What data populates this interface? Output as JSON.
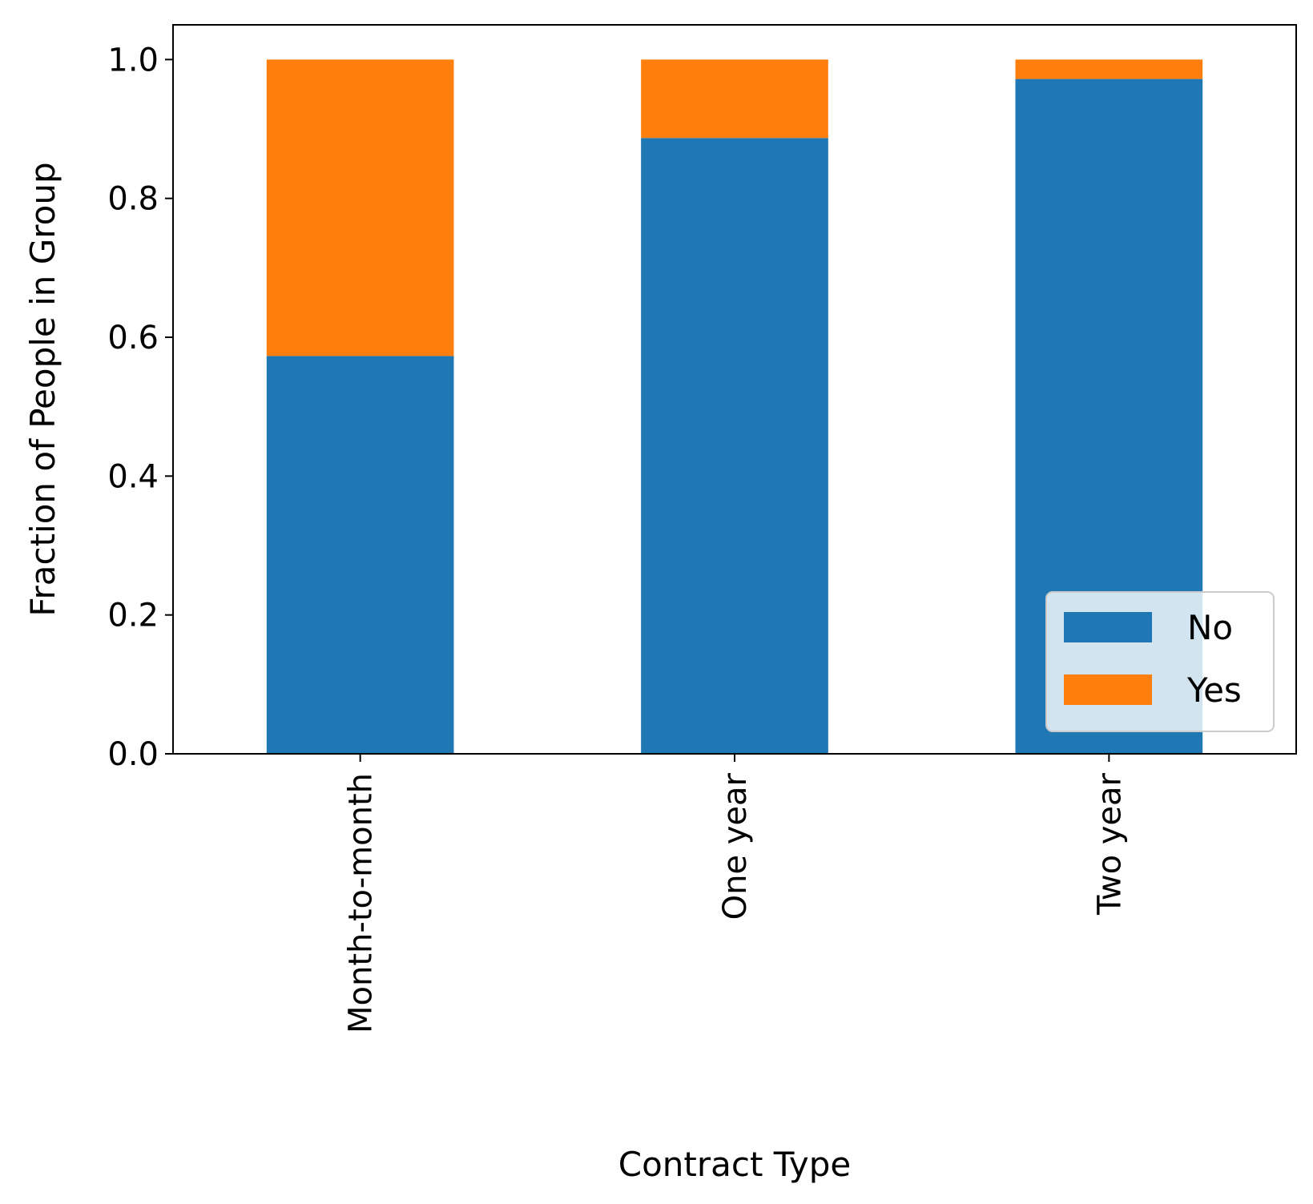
{
  "chart_data": {
    "type": "bar",
    "stacked": true,
    "categories": [
      "Month-to-month",
      "One year",
      "Two year"
    ],
    "series": [
      {
        "name": "No",
        "values": [
          0.573,
          0.887,
          0.972
        ],
        "color": "#1f77b4"
      },
      {
        "name": "Yes",
        "values": [
          0.427,
          0.113,
          0.028
        ],
        "color": "#ff7f0e"
      }
    ],
    "xlabel": "Contract Type",
    "ylabel": "Fraction of People in Group",
    "ylim": [
      0,
      1.05
    ],
    "yticks": [
      "0.0",
      "0.2",
      "0.4",
      "0.6",
      "0.8",
      "1.0"
    ],
    "ytick_values": [
      0,
      0.2,
      0.4,
      0.6,
      0.8,
      1.0
    ],
    "legend_position": "lower-right",
    "grid": false,
    "xtick_rotation": "vertical"
  }
}
